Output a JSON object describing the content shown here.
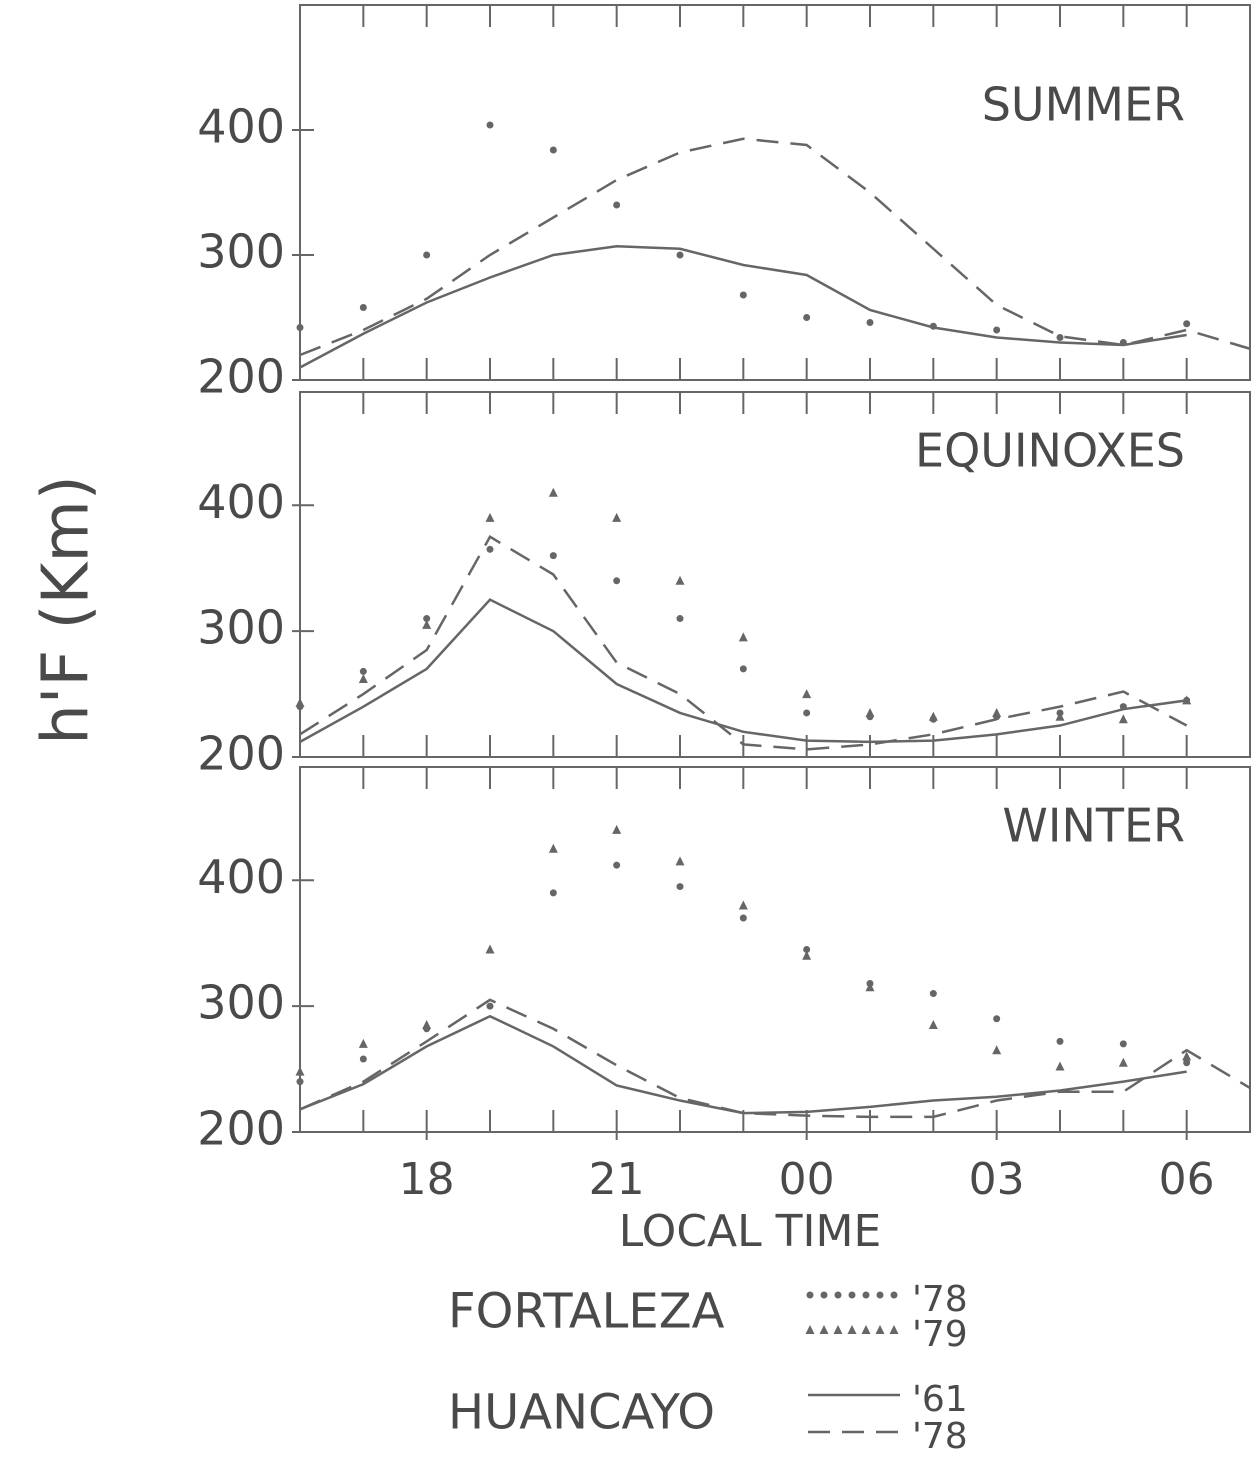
{
  "y_label": "h'F (Km)",
  "x_label": "LOCAL TIME",
  "legend": [
    {
      "group": "FORTALEZA",
      "entries": [
        {
          "label": "'78",
          "style": "dots"
        },
        {
          "label": "'79",
          "style": "triangles"
        }
      ]
    },
    {
      "group": "HUANCAYO",
      "entries": [
        {
          "label": "'61",
          "style": "solid"
        },
        {
          "label": "'78",
          "style": "dashed"
        }
      ]
    }
  ],
  "chart_data": [
    {
      "type": "line",
      "title": "SUMMER",
      "xlim": [
        16,
        31
      ],
      "ylim": [
        200,
        500
      ],
      "yticks": [
        200,
        300,
        400
      ],
      "x": [
        16,
        17,
        18,
        19,
        20,
        21,
        22,
        23,
        24,
        25,
        26,
        27,
        28,
        29,
        30,
        31
      ],
      "series": [
        {
          "style": "dots",
          "color": "#666666",
          "values": [
            242,
            258,
            300,
            404,
            384,
            340,
            300,
            268,
            250,
            246,
            243,
            240,
            234,
            230,
            245,
            null
          ]
        },
        {
          "style": "solid",
          "color": "#666666",
          "values": [
            210,
            237,
            262,
            282,
            300,
            307,
            305,
            292,
            284,
            256,
            242,
            234,
            230,
            228,
            236,
            null
          ]
        },
        {
          "style": "dashed",
          "color": "#666666",
          "values": [
            220,
            240,
            265,
            300,
            330,
            360,
            382,
            393,
            388,
            350,
            305,
            260,
            235,
            228,
            240,
            225
          ]
        }
      ]
    },
    {
      "type": "line",
      "title": "EQUINOXES",
      "xlim": [
        16,
        31
      ],
      "ylim": [
        200,
        490
      ],
      "yticks": [
        200,
        300,
        400
      ],
      "x": [
        16,
        17,
        18,
        19,
        20,
        21,
        22,
        23,
        24,
        25,
        26,
        27,
        28,
        29,
        30,
        31
      ],
      "series": [
        {
          "style": "dots",
          "color": "#666666",
          "values": [
            240,
            268,
            310,
            365,
            360,
            340,
            310,
            270,
            235,
            232,
            230,
            232,
            235,
            240,
            245,
            null
          ]
        },
        {
          "style": "triangles",
          "color": "#666666",
          "values": [
            243,
            262,
            305,
            390,
            410,
            390,
            340,
            295,
            250,
            235,
            232,
            235,
            232,
            230,
            245,
            null
          ]
        },
        {
          "style": "solid",
          "color": "#666666",
          "values": [
            212,
            240,
            270,
            325,
            300,
            258,
            235,
            220,
            213,
            212,
            213,
            218,
            225,
            238,
            245,
            null
          ]
        },
        {
          "style": "dashed",
          "color": "#666666",
          "values": [
            218,
            250,
            285,
            375,
            345,
            275,
            250,
            210,
            206,
            210,
            218,
            230,
            240,
            252,
            225,
            null
          ]
        }
      ]
    },
    {
      "type": "line",
      "title": "WINTER",
      "xlim": [
        16,
        31
      ],
      "ylim": [
        200,
        490
      ],
      "yticks": [
        200,
        300,
        400
      ],
      "xticks": [
        18,
        21,
        {
          "value": 24,
          "label": "00"
        },
        {
          "value": 27,
          "label": "03"
        },
        {
          "value": 30,
          "label": "06"
        }
      ],
      "x": [
        16,
        17,
        18,
        19,
        20,
        21,
        22,
        23,
        24,
        25,
        26,
        27,
        28,
        29,
        30,
        31
      ],
      "series": [
        {
          "style": "dots",
          "color": "#666666",
          "values": [
            240,
            258,
            282,
            300,
            390,
            412,
            395,
            370,
            345,
            318,
            310,
            290,
            272,
            270,
            255,
            null
          ]
        },
        {
          "style": "triangles",
          "color": "#666666",
          "values": [
            248,
            270,
            285,
            345,
            425,
            440,
            415,
            380,
            340,
            315,
            285,
            265,
            252,
            255,
            260,
            null
          ]
        },
        {
          "style": "solid",
          "color": "#666666",
          "values": [
            218,
            238,
            268,
            292,
            268,
            237,
            225,
            215,
            216,
            220,
            225,
            228,
            233,
            240,
            248,
            null
          ]
        },
        {
          "style": "dashed",
          "color": "#666666",
          "values": [
            218,
            240,
            272,
            305,
            282,
            253,
            227,
            215,
            213,
            212,
            212,
            225,
            232,
            232,
            265,
            235
          ]
        }
      ]
    }
  ]
}
